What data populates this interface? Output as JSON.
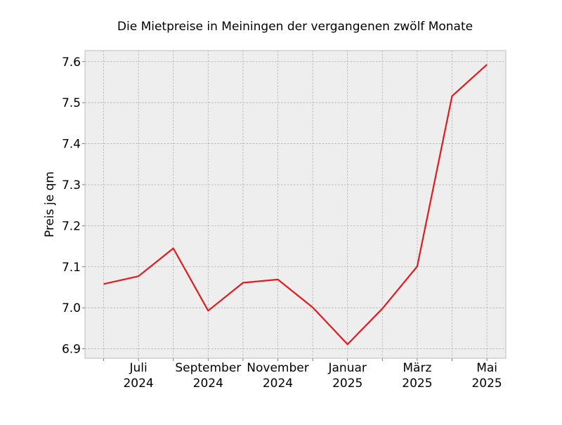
{
  "chart_data": {
    "type": "line",
    "title": "Die Mietpreise in Meiningen der vergangenen zwölf Monate",
    "xlabel": "",
    "ylabel": "Preis je qm",
    "x": [
      "2024-06",
      "2024-07",
      "2024-08",
      "2024-09",
      "2024-10",
      "2024-11",
      "2024-12",
      "2025-01",
      "2025-02",
      "2025-03",
      "2025-04",
      "2025-05"
    ],
    "series": [
      {
        "values": [
          7.058,
          7.077,
          7.145,
          6.993,
          7.061,
          7.069,
          7.001,
          6.911,
          6.998,
          7.101,
          7.516,
          7.593
        ]
      }
    ],
    "ylim": [
      6.877,
      7.627
    ],
    "yticks": [
      "6.9",
      "7.0",
      "7.1",
      "7.2",
      "7.3",
      "7.4",
      "7.5",
      "7.6"
    ],
    "xtick_labels": [
      {
        "month": "Juli",
        "year": "2024"
      },
      {
        "month": "September",
        "year": "2024"
      },
      {
        "month": "November",
        "year": "2024"
      },
      {
        "month": "Januar",
        "year": "2025"
      },
      {
        "month": "März",
        "year": "2025"
      },
      {
        "month": "Mai",
        "year": "2025"
      }
    ],
    "grid": true,
    "colors": {
      "line": "#e41a1c",
      "plot_background": "#eeeeee",
      "grid": "#b0b0b0",
      "frame": "#bcbcbc"
    }
  }
}
